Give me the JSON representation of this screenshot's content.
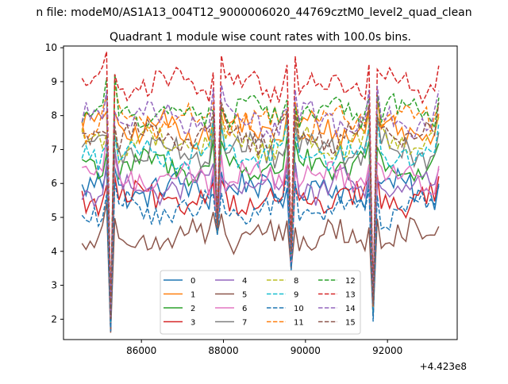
{
  "suptitle": "n file: modeM0/AS1A13_004T12_9000006020_44769cztM0_level2_quad_clean",
  "chart_data": {
    "type": "line",
    "title": "Quadrant 1 module wise count rates with 100.0s bins.",
    "xlabel": "",
    "ylabel": "",
    "x_offset_label": "+4.423e8",
    "x_ticks": [
      86000,
      88000,
      90000,
      92000
    ],
    "y_ticks": [
      2,
      3,
      4,
      5,
      6,
      7,
      8,
      9,
      10
    ],
    "xlim": [
      84100,
      93700
    ],
    "ylim": [
      1.4,
      10.05
    ],
    "grid": false,
    "legend": {
      "placement": "lower-center",
      "columns": 4
    },
    "series": [
      {
        "name": "0",
        "color": "#1f77b4",
        "dash": "solid",
        "base": 5.8,
        "amp": 0.4
      },
      {
        "name": "1",
        "color": "#ff7f0e",
        "dash": "solid",
        "base": 7.6,
        "amp": 0.35
      },
      {
        "name": "2",
        "color": "#2ca02c",
        "dash": "solid",
        "base": 6.5,
        "amp": 0.35
      },
      {
        "name": "3",
        "color": "#d62728",
        "dash": "solid",
        "base": 5.5,
        "amp": 0.35
      },
      {
        "name": "4",
        "color": "#9467bd",
        "dash": "solid",
        "base": 5.9,
        "amp": 0.35
      },
      {
        "name": "5",
        "color": "#8c564b",
        "dash": "solid",
        "base": 4.4,
        "amp": 0.35
      },
      {
        "name": "6",
        "color": "#e377c2",
        "dash": "solid",
        "base": 6.2,
        "amp": 0.35
      },
      {
        "name": "7",
        "color": "#7f7f7f",
        "dash": "solid",
        "base": 7.0,
        "amp": 0.35
      },
      {
        "name": "8",
        "color": "#bcbd22",
        "dash": "dashed",
        "base": 7.2,
        "amp": 0.35
      },
      {
        "name": "9",
        "color": "#17becf",
        "dash": "dashed",
        "base": 6.9,
        "amp": 0.35
      },
      {
        "name": "10",
        "color": "#1f77b4",
        "dash": "dashed",
        "base": 5.2,
        "amp": 0.35
      },
      {
        "name": "11",
        "color": "#ff7f0e",
        "dash": "dashed",
        "base": 7.8,
        "amp": 0.35
      },
      {
        "name": "12",
        "color": "#2ca02c",
        "dash": "dashed",
        "base": 8.1,
        "amp": 0.35
      },
      {
        "name": "13",
        "color": "#d62728",
        "dash": "dashed",
        "base": 8.9,
        "amp": 0.35
      },
      {
        "name": "14",
        "color": "#9467bd",
        "dash": "dashed",
        "base": 7.9,
        "amp": 0.35
      },
      {
        "name": "15",
        "color": "#8c564b",
        "dash": "dashed",
        "base": 7.4,
        "amp": 0.35
      }
    ],
    "x_start": 84550,
    "x_step": 100,
    "n_points": 88,
    "dips": [
      {
        "x": 85250,
        "value": 1.8
      },
      {
        "x": 87850,
        "value": 4.6
      },
      {
        "x": 89650,
        "value": 3.6
      },
      {
        "x": 91650,
        "value": 2.2
      },
      {
        "x": 93350,
        "value": 3.3
      }
    ]
  }
}
